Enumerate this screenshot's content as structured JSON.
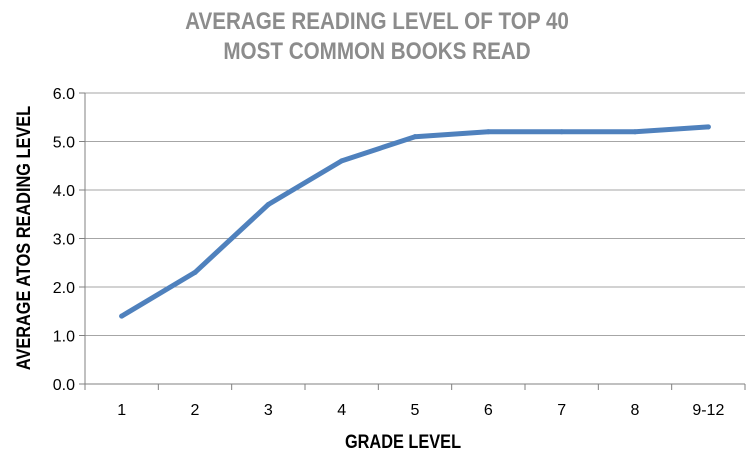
{
  "chart_data": {
    "type": "line",
    "title_lines": [
      "AVERAGE READING LEVEL OF TOP 40",
      "MOST COMMON BOOKS READ"
    ],
    "xlabel": "GRADE LEVEL",
    "ylabel": "AVERAGE ATOS READING LEVEL",
    "categories": [
      "1",
      "2",
      "3",
      "4",
      "5",
      "6",
      "7",
      "8",
      "9-12"
    ],
    "series": [
      {
        "values": [
          1.4,
          2.3,
          3.7,
          4.6,
          5.1,
          5.2,
          5.2,
          5.2,
          5.3
        ]
      }
    ],
    "ylim": [
      0,
      6
    ],
    "yticks": [
      "0.0",
      "1.0",
      "2.0",
      "3.0",
      "4.0",
      "5.0",
      "6.0"
    ],
    "grid": true,
    "legend": "none",
    "colors": {
      "line": "#4f81bd",
      "grid": "#a6a6a6",
      "title": "#8c8c8c",
      "axis_text": "#000000"
    }
  }
}
